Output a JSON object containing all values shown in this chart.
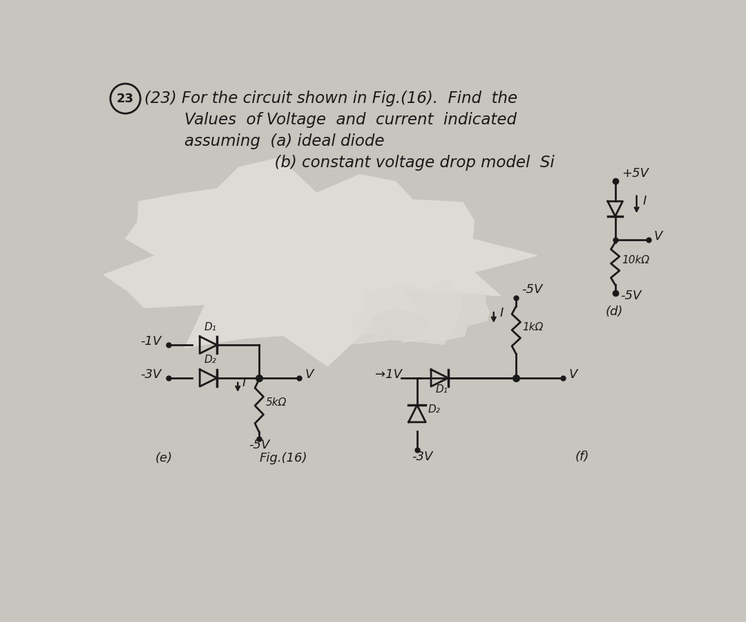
{
  "bg_color": "#c8c4be",
  "paper_color": "#d4d0ca",
  "text_color": "#2a2a2a",
  "line_color": "#1a1a1a",
  "smear_color": "#e8e6e2",
  "title_lines": [
    "(23) For the circuit shown in Fig.(16).  Find  the",
    "        Values  of Voltage  and  current  indicated",
    "        assuming  (a) ideal diode",
    "                          (b) constant voltage drop model  Si"
  ],
  "fig_label": "Fig.(16)",
  "circuit_d_label": "(d)",
  "circuit_e_label": "(e)",
  "circuit_f_label": "(f)"
}
